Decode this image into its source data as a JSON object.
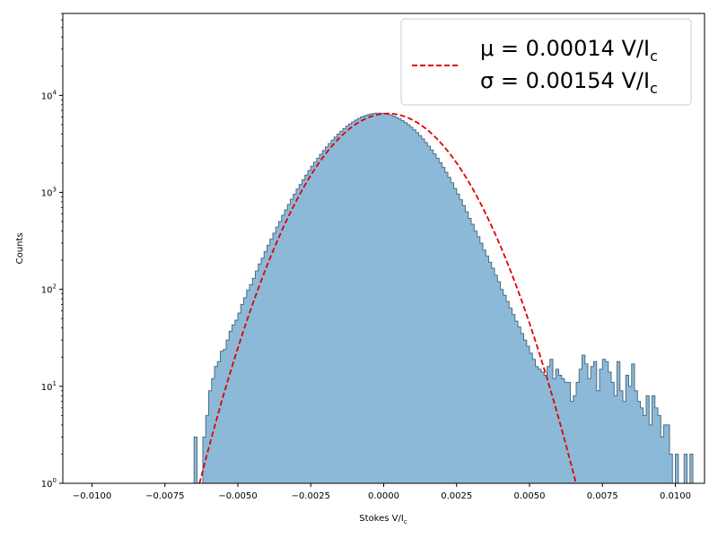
{
  "chart_data": {
    "type": "bar",
    "subtype": "histogram",
    "title": "",
    "xlabel": "Stokes V/I",
    "xlabel_subscript": "c",
    "ylabel": "Counts",
    "xlim": [
      -0.011,
      0.011
    ],
    "ylim": [
      1,
      70000
    ],
    "yscale": "log",
    "xticks": [
      -0.01,
      -0.0075,
      -0.005,
      -0.0025,
      0.0,
      0.0025,
      0.005,
      0.0075,
      0.01
    ],
    "xtick_labels": [
      "−0.0100",
      "−0.0075",
      "−0.0050",
      "−0.0025",
      "0.0000",
      "0.0025",
      "0.0050",
      "0.0075",
      "0.0100"
    ],
    "yticks": [
      1,
      10,
      100,
      1000,
      10000
    ],
    "ytick_labels": [
      "10",
      "10",
      "10",
      "10",
      "10"
    ],
    "ytick_exponents": [
      "0",
      "1",
      "2",
      "3",
      "4"
    ],
    "grid": false,
    "legend_position": "top-right",
    "legend": [
      {
        "mu_prefix": "μ = 0.00014 V/I",
        "mu_sub": "c",
        "sigma_prefix": "σ = 0.00154 V/I",
        "sigma_sub": "c"
      }
    ],
    "fit": {
      "mu": 0.00014,
      "sigma": 0.00154,
      "peak": 6500,
      "color": "#e00000",
      "style": "dashed"
    },
    "histogram": {
      "bin_width": 0.0001,
      "bin_start": -0.0065,
      "fill_color": "#8cb9d8",
      "edge_color": "#4d6e84",
      "counts": [
        3,
        1,
        1,
        3,
        5,
        9,
        12,
        16,
        18,
        23,
        24,
        30,
        37,
        43,
        48,
        57,
        70,
        82,
        98,
        112,
        130,
        155,
        183,
        210,
        245,
        285,
        330,
        380,
        440,
        500,
        580,
        660,
        750,
        850,
        960,
        1080,
        1210,
        1350,
        1510,
        1680,
        1860,
        2050,
        2250,
        2470,
        2700,
        2940,
        3190,
        3450,
        3720,
        3990,
        4270,
        4540,
        4810,
        5070,
        5320,
        5560,
        5780,
        5980,
        6150,
        6300,
        6420,
        6500,
        6550,
        6560,
        6540,
        6480,
        6390,
        6270,
        6110,
        5930,
        5720,
        5490,
        5240,
        4980,
        4700,
        4420,
        4130,
        3840,
        3560,
        3270,
        3000,
        2740,
        2490,
        2250,
        2020,
        1810,
        1610,
        1430,
        1260,
        1100,
        960,
        840,
        730,
        630,
        540,
        470,
        400,
        350,
        300,
        255,
        220,
        190,
        165,
        140,
        120,
        100,
        87,
        75,
        64,
        55,
        47,
        41,
        35,
        30,
        26,
        22,
        19,
        16,
        15,
        14,
        13,
        16,
        19,
        12,
        15,
        13,
        12,
        11,
        11,
        7,
        8,
        11,
        15,
        21,
        17,
        12,
        16,
        18,
        9,
        15,
        19,
        18,
        14,
        11,
        8,
        18,
        9,
        7,
        13,
        10,
        17,
        9,
        7,
        6,
        5,
        8,
        4,
        8,
        6,
        5,
        3,
        4,
        4,
        2,
        1,
        2,
        1,
        1,
        2,
        1,
        2,
        1
      ]
    }
  }
}
